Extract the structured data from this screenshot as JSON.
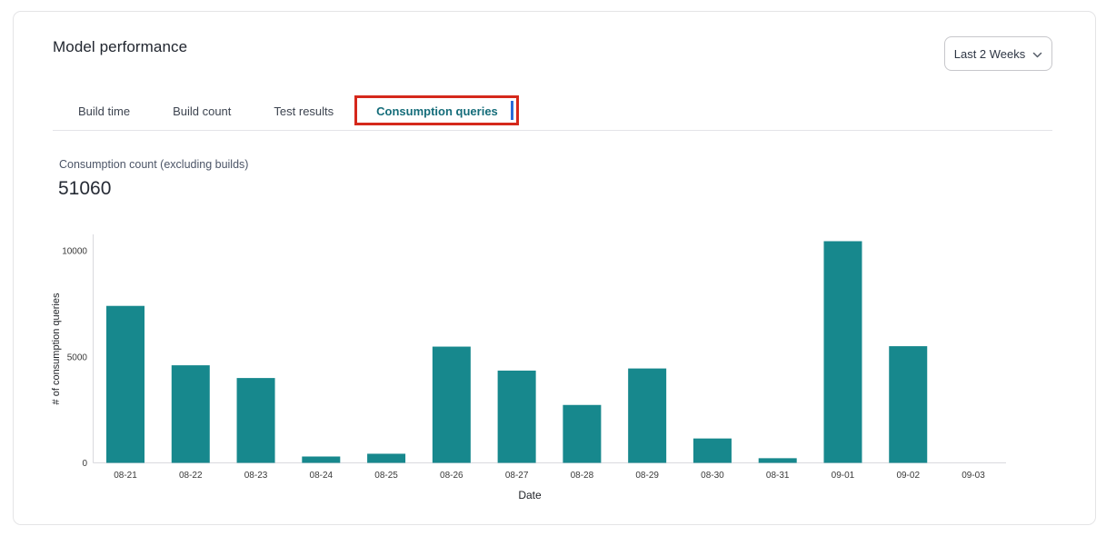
{
  "header": {
    "title": "Model performance",
    "range_selector": {
      "value": "Last 2 Weeks"
    }
  },
  "tabs": [
    {
      "label": "Build time",
      "active": false
    },
    {
      "label": "Build count",
      "active": false
    },
    {
      "label": "Test results",
      "active": false
    },
    {
      "label": "Consumption queries",
      "active": true
    }
  ],
  "annotation": {
    "type": "highlight-box",
    "target_tab": "Consumption queries",
    "box_color": "#d5281b",
    "inner_line_color": "#2b6bd8"
  },
  "metric": {
    "label": "Consumption count (excluding builds)",
    "value": "51060"
  },
  "chart_data": {
    "type": "bar",
    "title": "",
    "xlabel": "Date",
    "ylabel": "# of consumption queries",
    "categories": [
      "08-21",
      "08-22",
      "08-23",
      "08-24",
      "08-25",
      "08-26",
      "08-27",
      "08-28",
      "08-29",
      "08-30",
      "08-31",
      "09-01",
      "09-02",
      "09-03"
    ],
    "values": [
      7400,
      4600,
      4000,
      300,
      430,
      5480,
      4350,
      2730,
      4450,
      1150,
      220,
      10450,
      5500,
      0
    ],
    "yticks": [
      0,
      5000,
      10000
    ],
    "ylim": [
      0,
      10800
    ],
    "grid": false,
    "legend": null,
    "bar_color": "#17888d",
    "axis_line_color": "#d9d9de",
    "tick_text_color": "#3a3a3a",
    "axis_title_color": "#1c1f24"
  },
  "colors": {
    "bar": "#17888d",
    "active_tab": "#156d7a",
    "annotation_red": "#d5281b",
    "card_border": "#e4e4e6"
  }
}
